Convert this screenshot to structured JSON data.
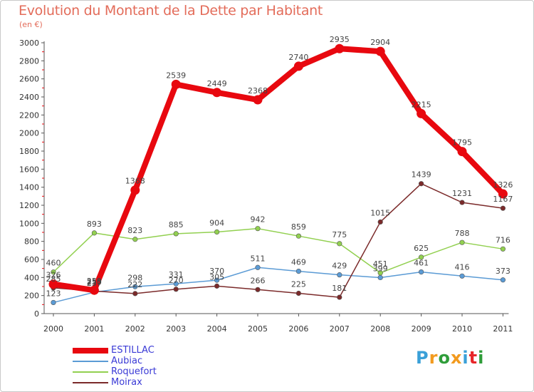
{
  "title": "Evolution du Montant de la Dette par Habitant",
  "subtitle": "(en €)",
  "brand": {
    "text": "Proxiti",
    "colors": [
      "#3aa0d8",
      "#f29a1e",
      "#2f9d3a",
      "#f29a1e",
      "#3aa0d8",
      "#e8262a",
      "#2f9d3a"
    ]
  },
  "chart_data": {
    "type": "line",
    "title": "Evolution du Montant de la Dette par Habitant",
    "ylabel": "(en €)",
    "xlabel": "",
    "x": [
      "2000",
      "2001",
      "2002",
      "2003",
      "2004",
      "2005",
      "2006",
      "2007",
      "2008",
      "2009",
      "2010",
      "2011"
    ],
    "ylim": [
      0,
      3000
    ],
    "yticks": [
      0,
      200,
      400,
      600,
      800,
      1000,
      1200,
      1400,
      1600,
      1800,
      2000,
      2200,
      2400,
      2600,
      2800,
      3000
    ],
    "grid": false,
    "legend_position": "bottom-left",
    "series": [
      {
        "name": "ESTILLAC",
        "color": "#e8080f",
        "values": [
          326,
          259,
          1368,
          2539,
          2449,
          2368,
          2740,
          2935,
          2904,
          2215,
          1795,
          1326
        ]
      },
      {
        "name": "Aubiac",
        "color": "#5b9bd5",
        "values": [
          123,
          237,
          298,
          331,
          370,
          511,
          469,
          429,
          399,
          461,
          416,
          373
        ]
      },
      {
        "name": "Roquefort",
        "color": "#92d050",
        "values": [
          460,
          893,
          823,
          885,
          904,
          942,
          859,
          775,
          451,
          625,
          788,
          716
        ]
      },
      {
        "name": "Moirax",
        "color": "#7b2a2a",
        "values": [
          285,
          250,
          222,
          270,
          305,
          266,
          225,
          181,
          1015,
          1439,
          1231,
          1167
        ]
      }
    ]
  }
}
